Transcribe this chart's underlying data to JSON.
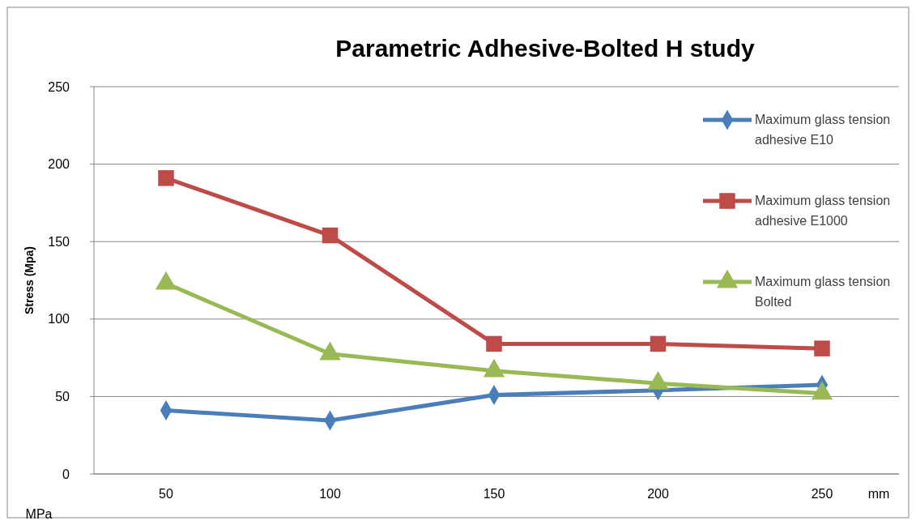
{
  "chart_data": {
    "type": "line",
    "title": "Parametric Adhesive-Bolted H study",
    "ylabel": "Stress (Mpa)",
    "xlabel": "mm",
    "annotations": [
      "MPa"
    ],
    "categories": [
      "50",
      "100",
      "150",
      "200",
      "250"
    ],
    "series": [
      {
        "name": "Maximum glass tension adhesive E10",
        "color": "#4a7ebb",
        "marker": "diamond",
        "values": [
          41,
          34.5,
          51,
          54,
          57.5
        ]
      },
      {
        "name": "Maximum glass tension adhesive E1000",
        "color": "#be4b48",
        "marker": "square",
        "values": [
          191,
          154,
          84,
          84,
          81
        ]
      },
      {
        "name": "Maximum glass tension Bolted",
        "color": "#98b954",
        "marker": "triangle",
        "values": [
          123,
          77.5,
          66.5,
          58.5,
          52
        ]
      }
    ],
    "ylim": [
      0,
      250
    ],
    "yticks": [
      0,
      50,
      100,
      150,
      200,
      250
    ],
    "grid": "y",
    "legend": "top right",
    "line_style": "solid"
  }
}
